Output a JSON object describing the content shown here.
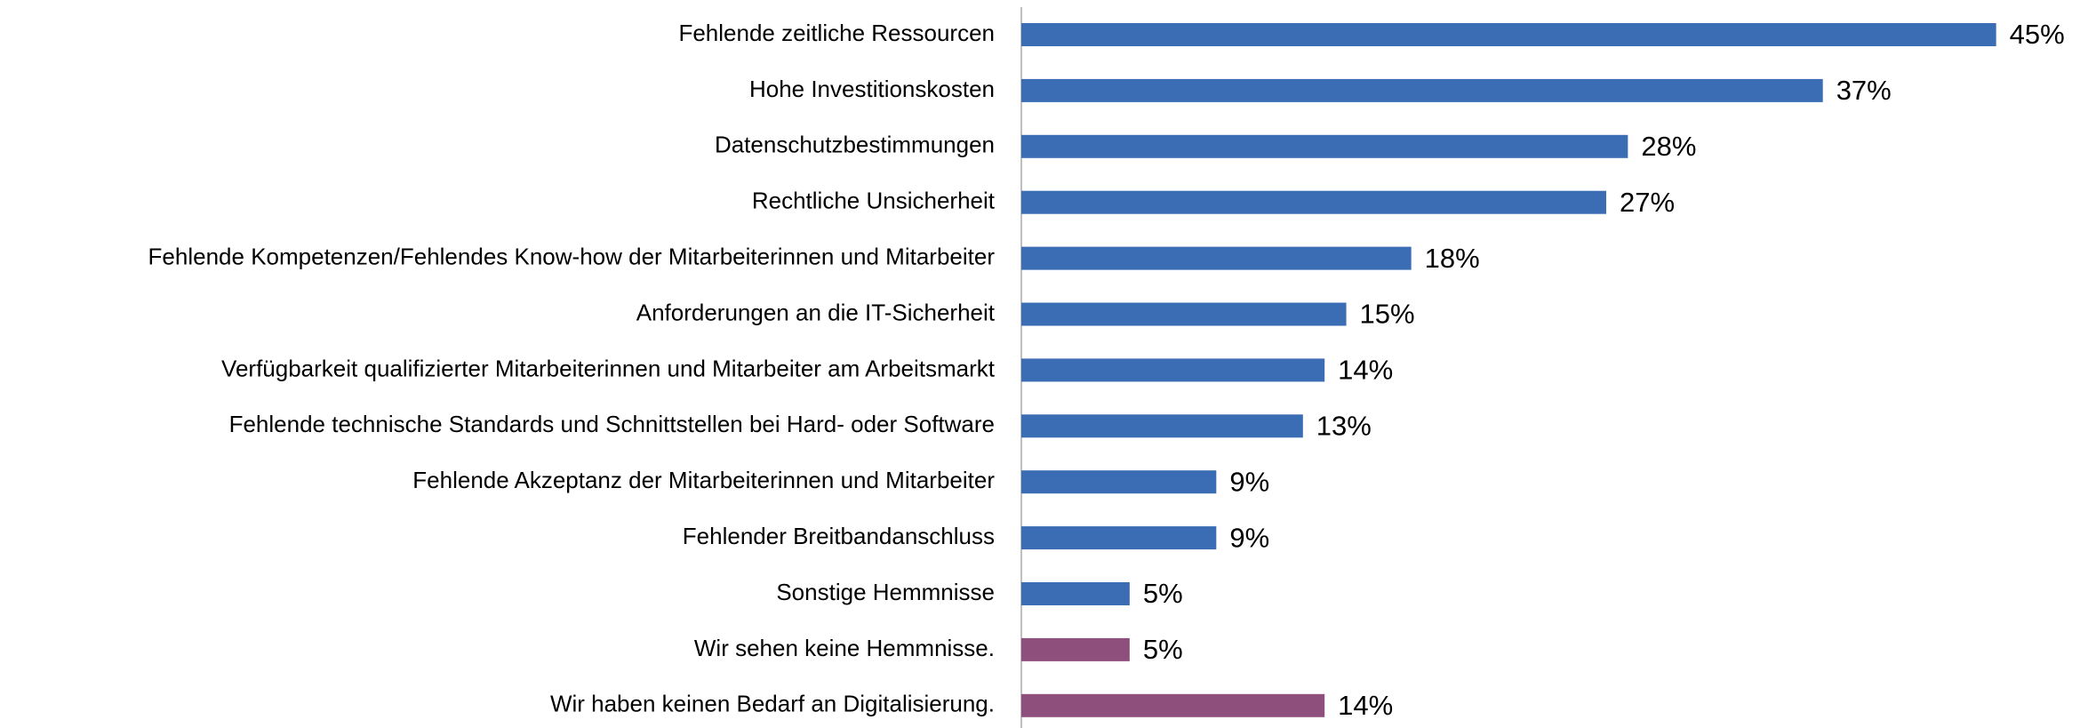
{
  "chart_data": {
    "type": "barh",
    "categories": [
      "Fehlende zeitliche Ressourcen",
      "Hohe Investitionskosten",
      "Datenschutzbestimmungen",
      "Rechtliche Unsicherheit",
      "Fehlende Kompetenzen/Fehlendes Know-how der Mitarbeiterinnen und Mitarbeiter",
      "Anforderungen an die IT-Sicherheit",
      "Verfügbarkeit qualifizierter Mitarbeiterinnen und Mitarbeiter am Arbeitsmarkt",
      "Fehlende technische Standards und Schnittstellen bei Hard- oder Software",
      "Fehlende Akzeptanz der Mitarbeiterinnen und Mitarbeiter",
      "Fehlender Breitbandanschluss",
      "Sonstige Hemmnisse",
      "Wir sehen keine Hemmnisse.",
      "Wir haben keinen Bedarf an Digitalisierung."
    ],
    "values": [
      45,
      37,
      28,
      27,
      18,
      15,
      14,
      13,
      9,
      9,
      5,
      5,
      14
    ],
    "value_labels": [
      "45%",
      "37%",
      "28%",
      "27%",
      "18%",
      "15%",
      "14%",
      "13%",
      "9%",
      "9%",
      "5%",
      "5%",
      "14%"
    ],
    "colors": [
      "#3a6db4",
      "#3a6db4",
      "#3a6db4",
      "#3a6db4",
      "#3a6db4",
      "#3a6db4",
      "#3a6db4",
      "#3a6db4",
      "#3a6db4",
      "#3a6db4",
      "#3a6db4",
      "#8f4f7d",
      "#8f4f7d"
    ]
  }
}
